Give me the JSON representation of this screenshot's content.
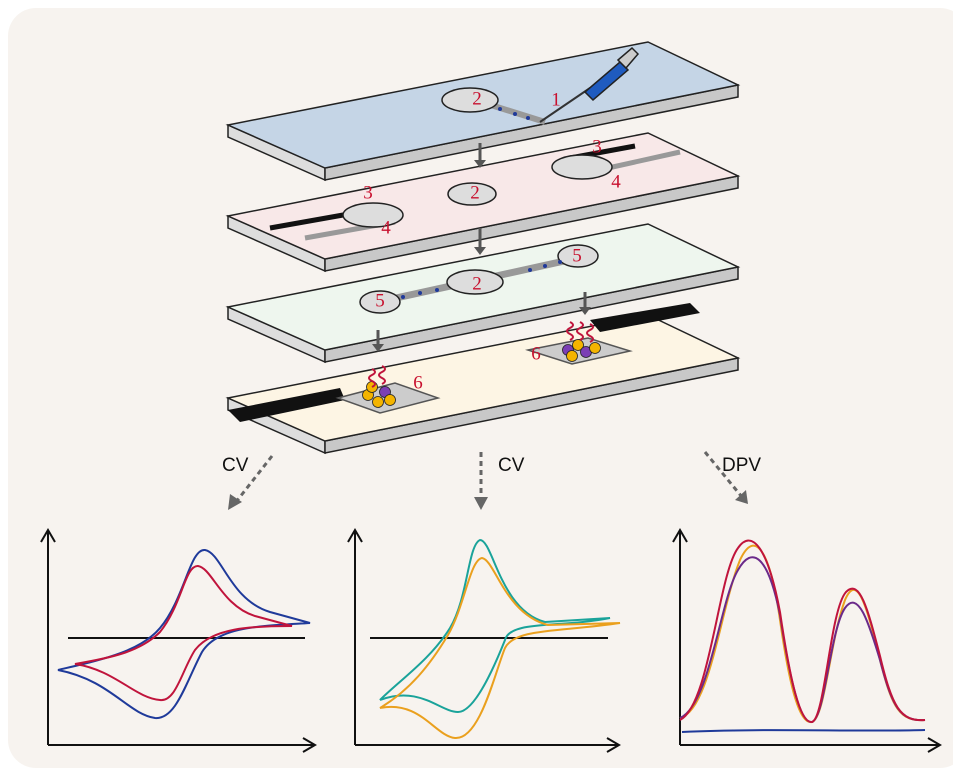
{
  "plate_labels": [
    "2",
    "1",
    "3",
    "4",
    "2",
    "3",
    "4",
    "2",
    "5",
    "5",
    "6",
    "6"
  ],
  "techniques": [
    "CV",
    "CV",
    "DPV"
  ]
}
